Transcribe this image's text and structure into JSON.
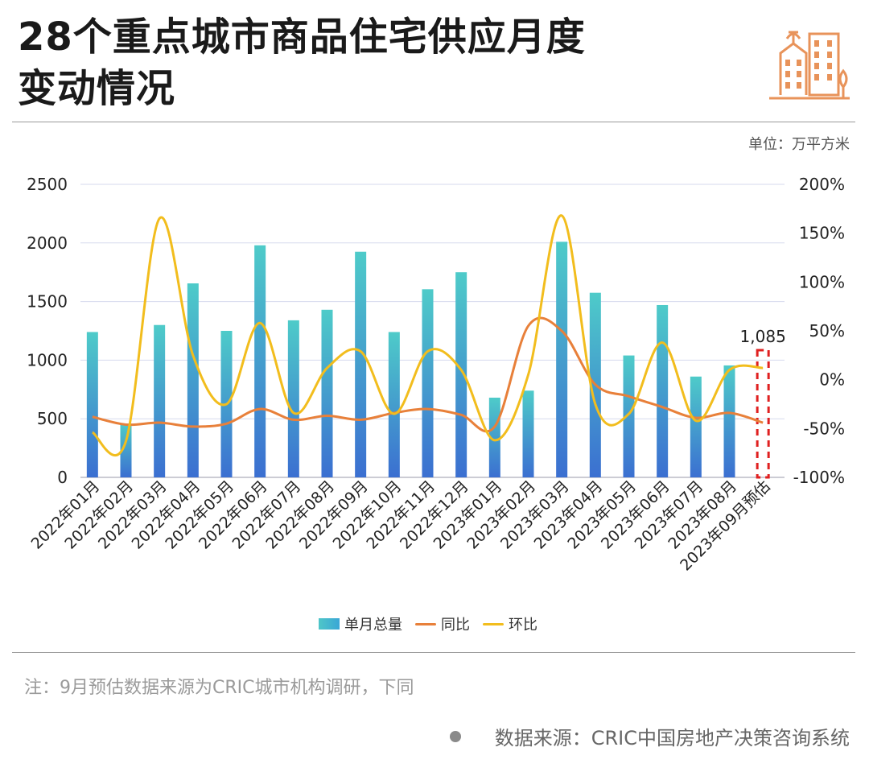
{
  "header": {
    "title_line1": "28个重点城市商品住宅供应月度",
    "title_line2": "变动情况",
    "unit": "单位：万平方米"
  },
  "icons": {
    "logo": "city-buildings-icon"
  },
  "colors": {
    "bar_top": "#4ecbc9",
    "bar_bottom": "#3b6fd1",
    "yoy": "#e8803a",
    "mom": "#f2bd1d",
    "forecast": "#e02020"
  },
  "chart_data": {
    "type": "bar",
    "categories": [
      "2022年01月",
      "2022年02月",
      "2022年03月",
      "2022年04月",
      "2022年05月",
      "2022年06月",
      "2022年07月",
      "2022年08月",
      "2022年09月",
      "2022年10月",
      "2022年11月",
      "2022年12月",
      "2023年01月",
      "2023年02月",
      "2023年03月",
      "2023年04月",
      "2023年05月",
      "2023年06月",
      "2023年07月",
      "2023年08月",
      "2023年09月预估"
    ],
    "series": [
      {
        "name": "单月总量",
        "axis": "left",
        "values": [
          1240,
          460,
          1300,
          1655,
          1250,
          1980,
          1340,
          1430,
          1925,
          1240,
          1605,
          1750,
          680,
          740,
          2010,
          1575,
          1040,
          1470,
          860,
          955,
          1085
        ]
      },
      {
        "name": "同比",
        "axis": "right",
        "unit": "%",
        "values": [
          -38,
          -46,
          -44,
          -48,
          -45,
          -30,
          -41,
          -37,
          -41,
          -34,
          -30,
          -36,
          -48,
          55,
          50,
          -5,
          -17,
          -28,
          -39,
          -34,
          -44
        ]
      },
      {
        "name": "环比",
        "axis": "right",
        "unit": "%",
        "values": [
          -54,
          -63,
          165,
          25,
          -25,
          58,
          -34,
          12,
          29,
          -35,
          29,
          10,
          -62,
          5,
          168,
          -25,
          -35,
          38,
          -42,
          10,
          12
        ]
      }
    ],
    "y_left": {
      "min": 0,
      "max": 2500,
      "ticks": [
        0,
        500,
        1000,
        1500,
        2000,
        2500
      ]
    },
    "y_right": {
      "min": -100,
      "max": 200,
      "ticks": [
        "-100%",
        "-50%",
        "0%",
        "50%",
        "100%",
        "150%",
        "200%"
      ]
    },
    "annotation": {
      "label": "1,085",
      "category": "2023年09月预估"
    },
    "legend": [
      "单月总量",
      "同比",
      "环比"
    ]
  },
  "footer": {
    "note": "注：9月预估数据来源为CRIC城市机构调研，下同",
    "source": "数据来源：CRIC中国房地产决策咨询系统"
  }
}
